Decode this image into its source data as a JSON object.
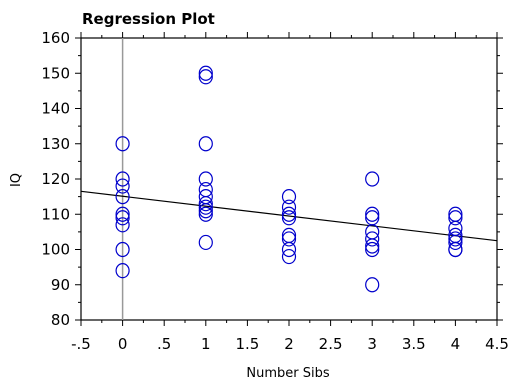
{
  "chart_data": {
    "type": "scatter",
    "title": "Regression Plot",
    "xlabel": "Number Sibs",
    "ylabel": "IQ",
    "xlim": [
      -0.5,
      4.5
    ],
    "ylim": [
      80,
      160
    ],
    "x_ticks": [
      -0.5,
      0,
      0.5,
      1,
      1.5,
      2,
      2.5,
      3,
      3.5,
      4,
      4.5
    ],
    "x_tick_labels": [
      "-.5",
      "0",
      ".5",
      "1",
      "1.5",
      "2",
      "2.5",
      "3",
      "3.5",
      "4",
      "4.5"
    ],
    "y_ticks": [
      80,
      90,
      100,
      110,
      120,
      130,
      140,
      150,
      160
    ],
    "y_tick_labels": [
      "80",
      "90",
      "100",
      "110",
      "120",
      "130",
      "140",
      "150",
      "160"
    ],
    "grid": false,
    "reference_line_x": 0,
    "colors": {
      "points": "#0000cc",
      "regression_line": "#000000",
      "reference_line": "#999999",
      "axes": "#000000"
    },
    "series": [
      {
        "marker": "open-circle",
        "x": [
          0,
          0,
          0,
          0,
          0,
          0,
          0,
          0,
          0,
          1,
          1,
          1,
          1,
          1,
          1,
          1,
          1,
          1,
          1,
          1,
          2,
          2,
          2,
          2,
          2,
          2,
          2,
          2,
          3,
          3,
          3,
          3,
          3,
          3,
          3,
          3,
          4,
          4,
          4,
          4,
          4,
          4,
          4,
          4
        ],
        "y": [
          130,
          120,
          115,
          110,
          109,
          107,
          100,
          94,
          118,
          150,
          149,
          130,
          120,
          117,
          115,
          113,
          112,
          110,
          102,
          111,
          115,
          112,
          110,
          109,
          104,
          103,
          100,
          98,
          120,
          110,
          109,
          105,
          103,
          101,
          100,
          90,
          110,
          109,
          106,
          104,
          103,
          102,
          100,
          100
        ]
      }
    ],
    "regression_line": {
      "x": [
        -0.5,
        4.5
      ],
      "y": [
        116.5,
        102.5
      ]
    }
  }
}
